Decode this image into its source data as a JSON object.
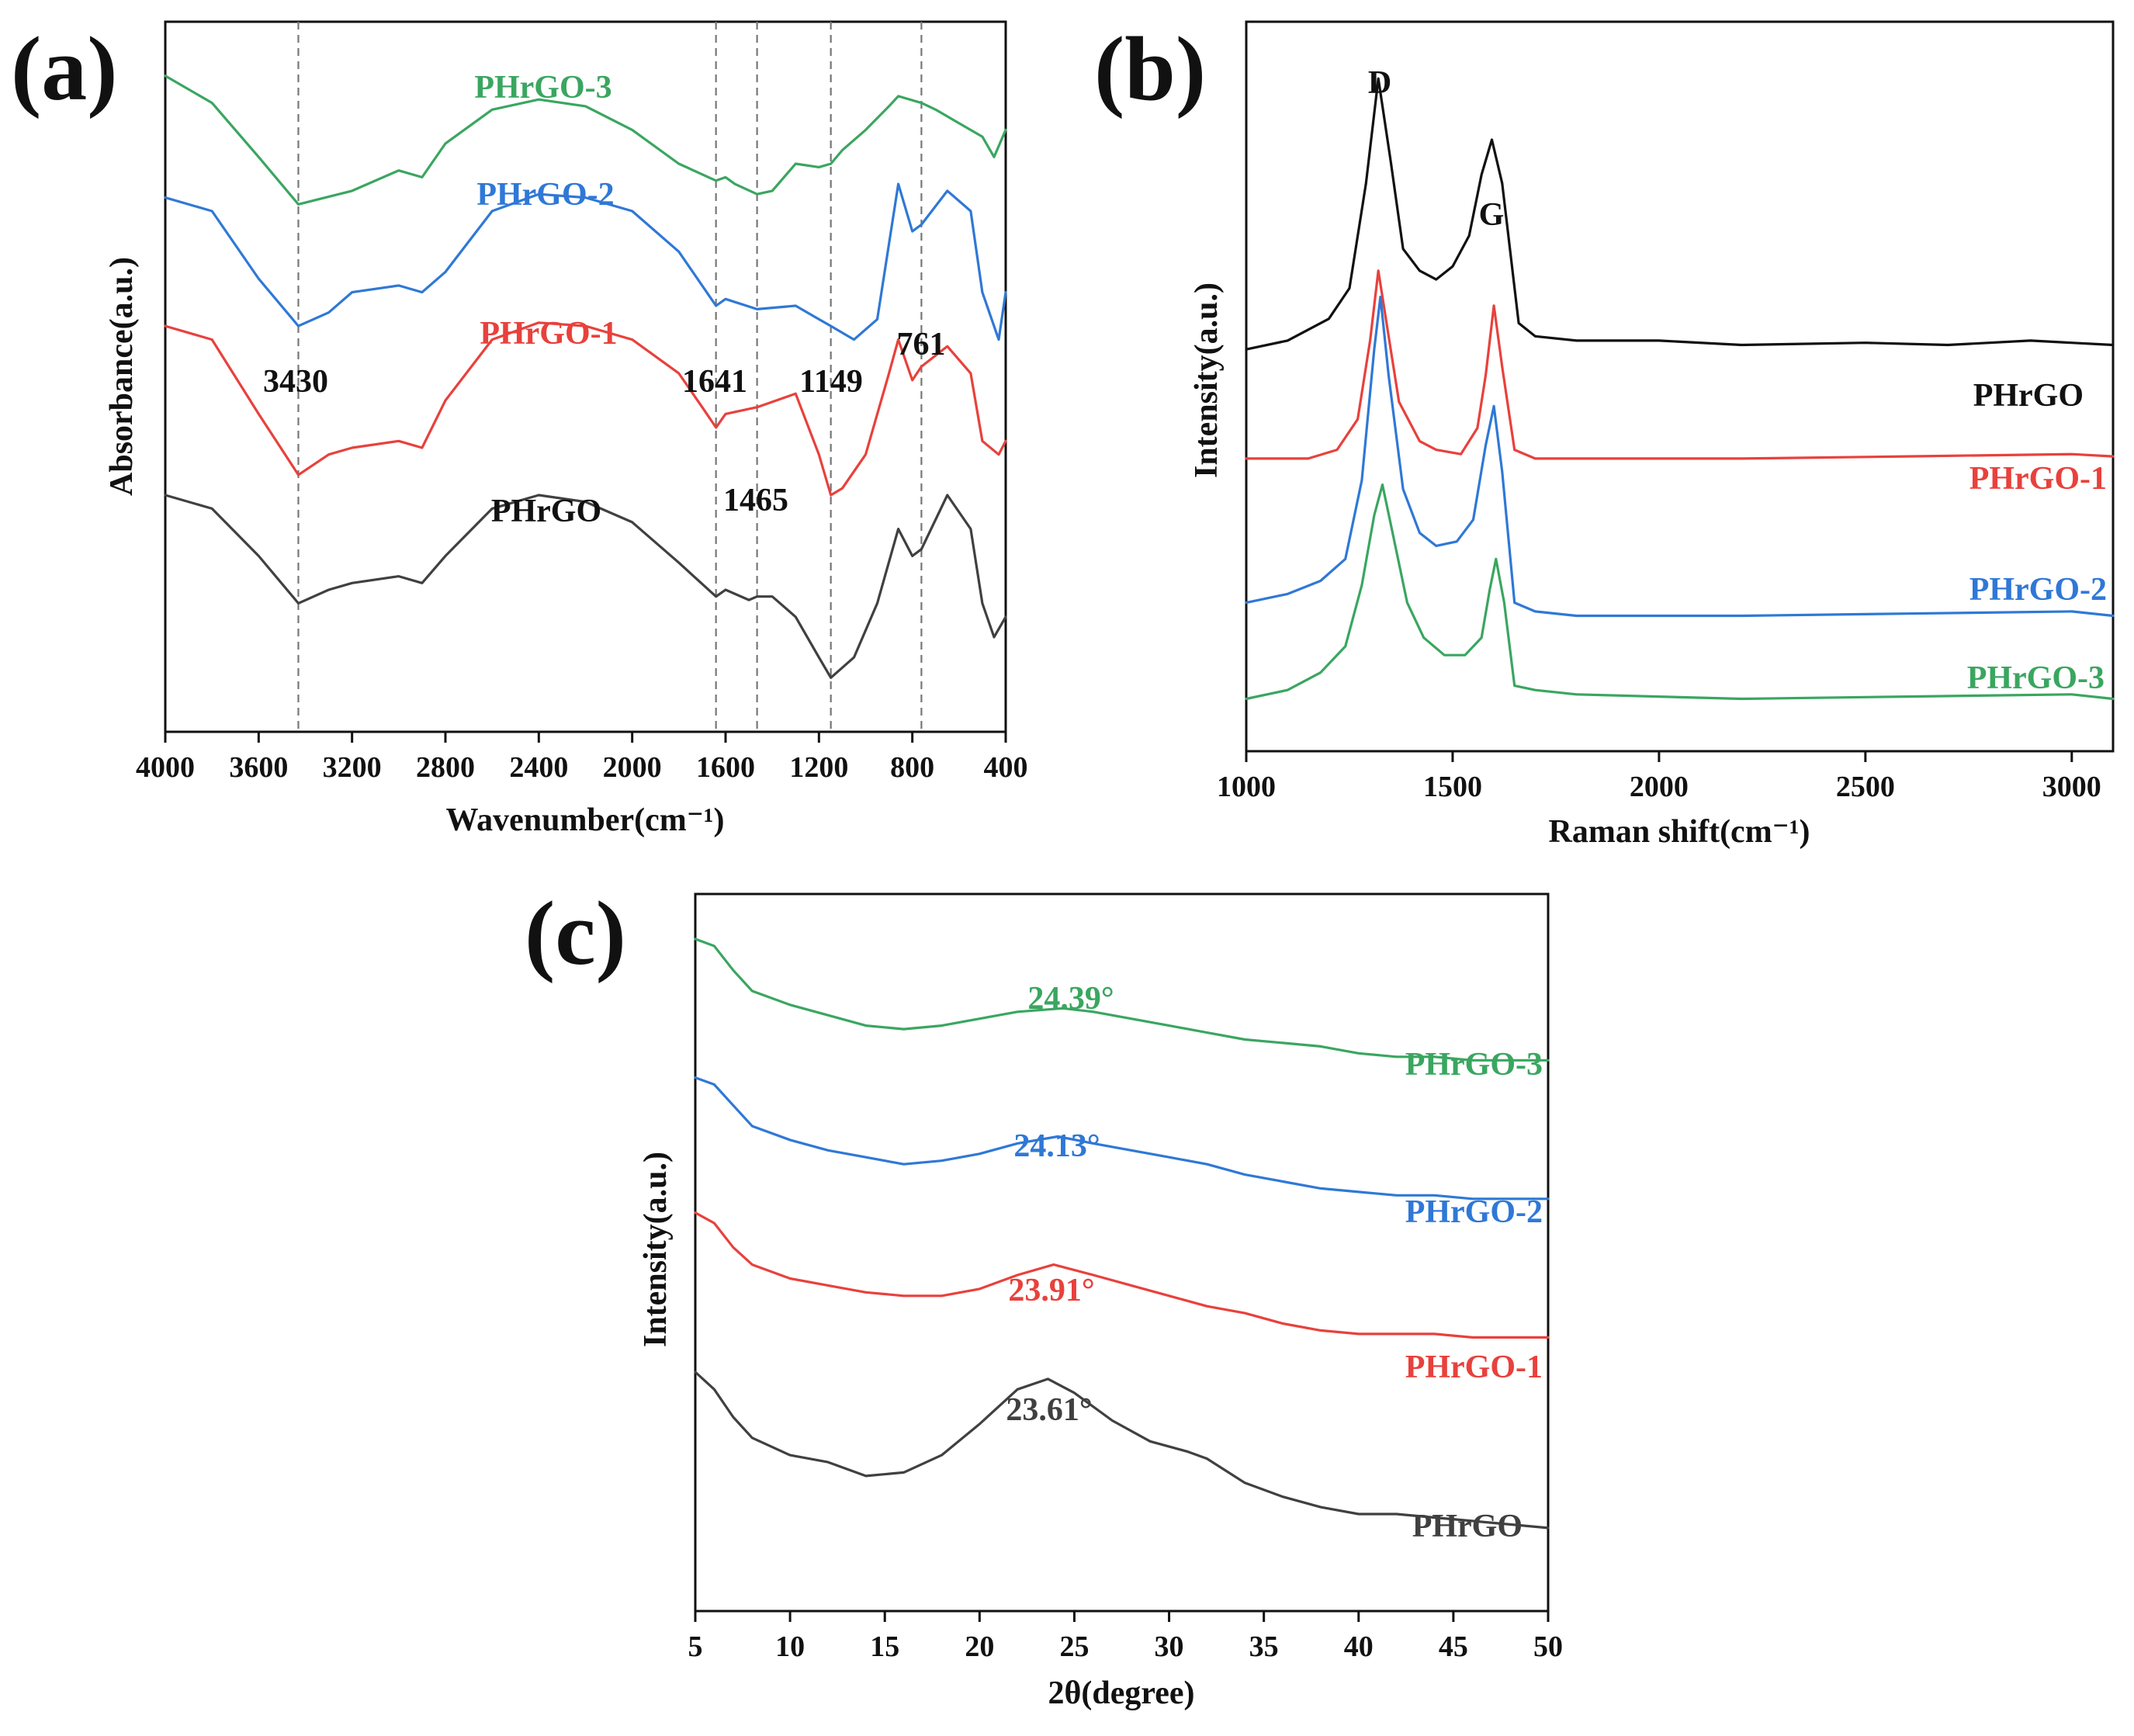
{
  "colors": {
    "PHrGO": "#404040",
    "PHrGO_raman": "#111111",
    "PHrGO-1": "#e8413c",
    "PHrGO-2": "#2f78d6",
    "PHrGO-3": "#3aa660"
  },
  "chart_data": [
    {
      "id": "a",
      "panel_label": "(a)",
      "type": "line",
      "title": "",
      "xlabel": "Wavenumber(cm⁻¹)",
      "ylabel": "Absorbance(a.u.)",
      "xlim": [
        4000,
        400
      ],
      "x_reversed": true,
      "xticks": [
        "4000",
        "3600",
        "3200",
        "2800",
        "2400",
        "2000",
        "1600",
        "1200",
        "800",
        "400"
      ],
      "reference_lines": [
        3430,
        1641,
        1465,
        1149,
        761
      ],
      "annotations": [
        "3430",
        "1641",
        "1465",
        "1149",
        "761"
      ],
      "series": [
        {
          "name": "PHrGO-3",
          "color": "#3aa660",
          "x": [
            4000,
            3800,
            3600,
            3430,
            3200,
            3000,
            2900,
            2800,
            2600,
            2400,
            2200,
            2000,
            1800,
            1641,
            1600,
            1560,
            1465,
            1400,
            1300,
            1200,
            1149,
            1100,
            1000,
            900,
            860,
            761,
            700,
            600,
            500,
            450,
            400
          ],
          "y": [
            0.92,
            0.88,
            0.8,
            0.73,
            0.75,
            0.78,
            0.77,
            0.82,
            0.87,
            0.885,
            0.875,
            0.84,
            0.79,
            0.765,
            0.77,
            0.76,
            0.745,
            0.75,
            0.79,
            0.785,
            0.79,
            0.81,
            0.84,
            0.875,
            0.89,
            0.88,
            0.87,
            0.85,
            0.83,
            0.8,
            0.84
          ]
        },
        {
          "name": "PHrGO-2",
          "color": "#2f78d6",
          "x": [
            4000,
            3800,
            3600,
            3430,
            3300,
            3200,
            3000,
            2900,
            2800,
            2600,
            2400,
            2200,
            2000,
            1800,
            1641,
            1600,
            1465,
            1300,
            1200,
            1149,
            1050,
            950,
            860,
            800,
            761,
            650,
            550,
            500,
            430,
            400
          ],
          "y": [
            0.74,
            0.72,
            0.62,
            0.55,
            0.57,
            0.6,
            0.61,
            0.6,
            0.63,
            0.72,
            0.745,
            0.74,
            0.72,
            0.66,
            0.58,
            0.59,
            0.575,
            0.58,
            0.56,
            0.55,
            0.53,
            0.56,
            0.76,
            0.69,
            0.7,
            0.75,
            0.72,
            0.6,
            0.53,
            0.6
          ]
        },
        {
          "name": "PHrGO-1",
          "color": "#e8413c",
          "x": [
            4000,
            3800,
            3600,
            3430,
            3300,
            3200,
            3000,
            2900,
            2800,
            2600,
            2400,
            2200,
            2000,
            1800,
            1700,
            1641,
            1600,
            1465,
            1300,
            1200,
            1149,
            1100,
            1000,
            900,
            860,
            800,
            761,
            650,
            550,
            500,
            430,
            400
          ],
          "y": [
            0.55,
            0.53,
            0.42,
            0.33,
            0.36,
            0.37,
            0.38,
            0.37,
            0.44,
            0.53,
            0.555,
            0.55,
            0.53,
            0.48,
            0.43,
            0.4,
            0.42,
            0.43,
            0.45,
            0.36,
            0.3,
            0.31,
            0.36,
            0.48,
            0.53,
            0.47,
            0.49,
            0.52,
            0.48,
            0.38,
            0.36,
            0.38
          ]
        },
        {
          "name": "PHrGO",
          "color": "#404040",
          "x": [
            4000,
            3800,
            3600,
            3430,
            3300,
            3200,
            3000,
            2900,
            2800,
            2600,
            2400,
            2200,
            2000,
            1800,
            1641,
            1600,
            1500,
            1465,
            1400,
            1300,
            1200,
            1149,
            1050,
            950,
            860,
            800,
            761,
            650,
            550,
            500,
            450,
            400
          ],
          "y": [
            0.3,
            0.28,
            0.21,
            0.14,
            0.16,
            0.17,
            0.18,
            0.17,
            0.21,
            0.28,
            0.3,
            0.29,
            0.26,
            0.2,
            0.15,
            0.16,
            0.145,
            0.15,
            0.15,
            0.12,
            0.06,
            0.03,
            0.06,
            0.14,
            0.25,
            0.21,
            0.22,
            0.3,
            0.25,
            0.14,
            0.09,
            0.12
          ]
        }
      ]
    },
    {
      "id": "b",
      "panel_label": "(b)",
      "type": "line",
      "title": "",
      "xlabel": "Raman shift(cm⁻¹)",
      "ylabel": "Intensity(a.u.)",
      "xlim": [
        1000,
        3100
      ],
      "xticks": [
        "1000",
        "1500",
        "2000",
        "2500",
        "3000"
      ],
      "annotations": [
        "D",
        "G"
      ],
      "series": [
        {
          "name": "PHrGO",
          "color": "#111111",
          "x": [
            1000,
            1100,
            1200,
            1250,
            1290,
            1320,
            1350,
            1380,
            1420,
            1460,
            1500,
            1540,
            1570,
            1595,
            1620,
            1660,
            1700,
            1800,
            2000,
            2200,
            2500,
            2700,
            2900,
            3100
          ],
          "y": [
            0.8,
            0.82,
            0.87,
            0.94,
            1.18,
            1.42,
            1.23,
            1.03,
            0.98,
            0.96,
            0.99,
            1.06,
            1.2,
            1.28,
            1.18,
            0.86,
            0.83,
            0.82,
            0.82,
            0.81,
            0.815,
            0.81,
            0.82,
            0.81
          ]
        },
        {
          "name": "PHrGO-1",
          "color": "#e8413c",
          "x": [
            1000,
            1150,
            1220,
            1270,
            1300,
            1320,
            1340,
            1370,
            1420,
            1460,
            1520,
            1560,
            1580,
            1600,
            1620,
            1650,
            1700,
            1800,
            2200,
            2600,
            3000,
            3100
          ],
          "y": [
            0.55,
            0.55,
            0.57,
            0.64,
            0.82,
            0.98,
            0.86,
            0.68,
            0.59,
            0.57,
            0.56,
            0.62,
            0.74,
            0.9,
            0.76,
            0.57,
            0.55,
            0.55,
            0.55,
            0.555,
            0.56,
            0.555
          ]
        },
        {
          "name": "PHrGO-2",
          "color": "#2f78d6",
          "x": [
            1000,
            1100,
            1180,
            1240,
            1280,
            1310,
            1325,
            1345,
            1380,
            1420,
            1460,
            1510,
            1550,
            1580,
            1600,
            1620,
            1650,
            1700,
            1800,
            2200,
            2600,
            3000,
            3100
          ],
          "y": [
            0.22,
            0.24,
            0.27,
            0.32,
            0.5,
            0.8,
            0.92,
            0.74,
            0.48,
            0.38,
            0.35,
            0.36,
            0.41,
            0.58,
            0.67,
            0.52,
            0.22,
            0.2,
            0.19,
            0.19,
            0.195,
            0.2,
            0.19
          ]
        },
        {
          "name": "PHrGO-3",
          "color": "#3aa660",
          "x": [
            1000,
            1100,
            1180,
            1240,
            1280,
            1310,
            1330,
            1350,
            1390,
            1430,
            1480,
            1530,
            1570,
            1590,
            1605,
            1625,
            1650,
            1700,
            1800,
            2200,
            2600,
            3000,
            3100
          ],
          "y": [
            0.0,
            0.02,
            0.06,
            0.12,
            0.26,
            0.42,
            0.49,
            0.4,
            0.22,
            0.14,
            0.1,
            0.1,
            0.14,
            0.25,
            0.32,
            0.22,
            0.03,
            0.02,
            0.01,
            0.0,
            0.005,
            0.01,
            0.0
          ]
        }
      ]
    },
    {
      "id": "c",
      "panel_label": "(c)",
      "type": "line",
      "title": "",
      "xlabel": "2θ(degree)",
      "ylabel": "Intensity(a.u.)",
      "xlim": [
        5,
        50
      ],
      "xticks": [
        "5",
        "10",
        "15",
        "20",
        "25",
        "30",
        "35",
        "40",
        "45",
        "50"
      ],
      "peak_labels": [
        "24.39°",
        "24.13°",
        "23.91°",
        "23.61°"
      ],
      "series": [
        {
          "name": "PHrGO-3",
          "color": "#3aa660",
          "peak": "24.39°",
          "x": [
            5,
            6,
            7,
            8,
            10,
            12,
            14,
            16,
            18,
            20,
            22,
            24.39,
            26,
            28,
            30,
            32,
            34,
            36,
            38,
            40,
            42,
            44,
            46,
            48,
            50
          ],
          "y": [
            1.42,
            1.4,
            1.33,
            1.27,
            1.23,
            1.2,
            1.17,
            1.16,
            1.17,
            1.19,
            1.21,
            1.22,
            1.21,
            1.19,
            1.17,
            1.15,
            1.13,
            1.12,
            1.11,
            1.09,
            1.08,
            1.08,
            1.07,
            1.07,
            1.07
          ]
        },
        {
          "name": "PHrGO-2",
          "color": "#2f78d6",
          "x": [
            5,
            6,
            7,
            8,
            10,
            12,
            14,
            16,
            18,
            20,
            22,
            24.13,
            26,
            28,
            30,
            32,
            34,
            36,
            38,
            40,
            42,
            44,
            46,
            48,
            50
          ],
          "y": [
            1.02,
            1.0,
            0.94,
            0.88,
            0.84,
            0.81,
            0.79,
            0.77,
            0.78,
            0.8,
            0.83,
            0.85,
            0.83,
            0.81,
            0.79,
            0.77,
            0.74,
            0.72,
            0.7,
            0.69,
            0.68,
            0.68,
            0.67,
            0.67,
            0.67
          ]
        },
        {
          "name": "PHrGO-1",
          "color": "#e8413c",
          "x": [
            5,
            6,
            7,
            8,
            10,
            12,
            14,
            16,
            18,
            20,
            22,
            23.91,
            26,
            28,
            30,
            32,
            34,
            36,
            38,
            40,
            42,
            44,
            46,
            48,
            50
          ],
          "y": [
            0.63,
            0.6,
            0.53,
            0.48,
            0.44,
            0.42,
            0.4,
            0.39,
            0.39,
            0.41,
            0.45,
            0.48,
            0.45,
            0.42,
            0.39,
            0.36,
            0.34,
            0.31,
            0.29,
            0.28,
            0.28,
            0.28,
            0.27,
            0.27,
            0.27
          ]
        },
        {
          "name": "PHrGO",
          "color": "#404040",
          "x": [
            5,
            6,
            7,
            8,
            10,
            12,
            14,
            16,
            18,
            20,
            22,
            23.61,
            25,
            27,
            29,
            31,
            32,
            34,
            36,
            38,
            40,
            42,
            44,
            46,
            48,
            50
          ],
          "y": [
            0.17,
            0.12,
            0.04,
            -0.02,
            -0.07,
            -0.09,
            -0.13,
            -0.12,
            -0.07,
            0.02,
            0.12,
            0.15,
            0.11,
            0.03,
            -0.03,
            -0.06,
            -0.08,
            -0.15,
            -0.19,
            -0.22,
            -0.24,
            -0.24,
            -0.25,
            -0.26,
            -0.27,
            -0.28
          ]
        }
      ]
    }
  ]
}
